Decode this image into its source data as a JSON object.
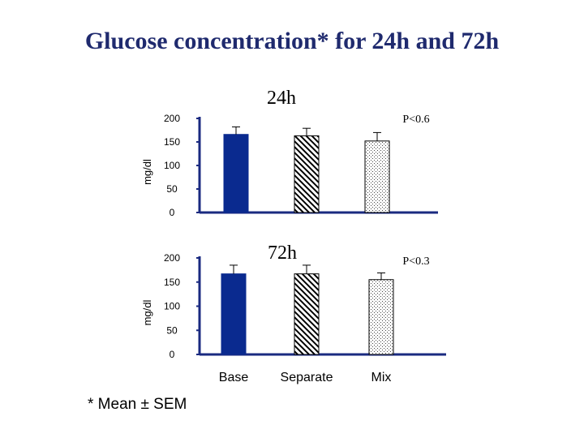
{
  "slide": {
    "title": "Glucose concentration* for 24h and 72h",
    "footnote": "* Mean ± SEM"
  },
  "colors": {
    "title": "#1f2a6e",
    "base_fill": "#0a2a8f",
    "axis": "#1a2a80"
  },
  "chart_data": [
    {
      "type": "bar",
      "title": "24h",
      "annotation": "P<0.6",
      "ylabel": "mg/dl",
      "xlabel": "",
      "ylim": [
        0,
        200
      ],
      "yticks": [
        0,
        50,
        100,
        150,
        200
      ],
      "categories": [
        "Base",
        "Separate",
        "Mix"
      ],
      "show_category_labels": false,
      "values": [
        166,
        163,
        152
      ],
      "errors": [
        16,
        16,
        18
      ],
      "patterns": [
        "solid",
        "diagonal",
        "dotted"
      ],
      "grid": false,
      "legend": "none"
    },
    {
      "type": "bar",
      "title": "72h",
      "annotation": "P<0.3",
      "ylabel": "mg/dl",
      "xlabel": "",
      "ylim": [
        0,
        200
      ],
      "yticks": [
        0,
        50,
        100,
        150,
        200
      ],
      "categories": [
        "Base",
        "Separate",
        "Mix"
      ],
      "show_category_labels": true,
      "values": [
        167,
        167,
        155
      ],
      "errors": [
        18,
        18,
        14
      ],
      "patterns": [
        "solid",
        "diagonal",
        "dotted"
      ],
      "grid": false,
      "legend": "none"
    }
  ]
}
